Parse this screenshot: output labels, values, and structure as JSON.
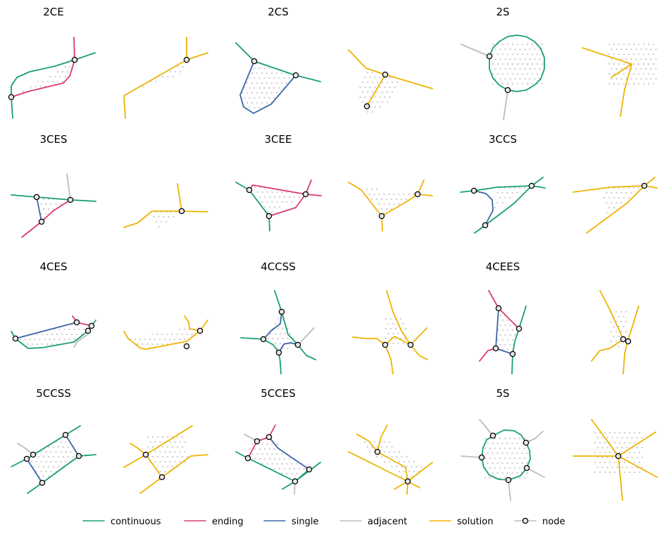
{
  "colors": {
    "continuous": "#1a9e73",
    "ending": "#d93b6d",
    "single": "#3b66a8",
    "adjacent": "#bdbdbd",
    "solution": "#efb300",
    "node": "#000000",
    "hatch": "#c8c8c8"
  },
  "panels": [
    {
      "title": "2CE"
    },
    {
      "title": "2CS"
    },
    {
      "title": "2S"
    },
    {
      "title": "3CES"
    },
    {
      "title": "3CEE"
    },
    {
      "title": "3CCS"
    },
    {
      "title": "4CES"
    },
    {
      "title": "4CCSS"
    },
    {
      "title": "4CEES"
    },
    {
      "title": "5CCSS"
    },
    {
      "title": "5CCES"
    },
    {
      "title": "5S"
    }
  ],
  "legend": [
    {
      "key": "continuous",
      "label": "continuous"
    },
    {
      "key": "ending",
      "label": "ending"
    },
    {
      "key": "single",
      "label": "single"
    },
    {
      "key": "adjacent",
      "label": "adjacent"
    },
    {
      "key": "solution",
      "label": "solution"
    },
    {
      "key": "node",
      "label": "node"
    }
  ]
}
